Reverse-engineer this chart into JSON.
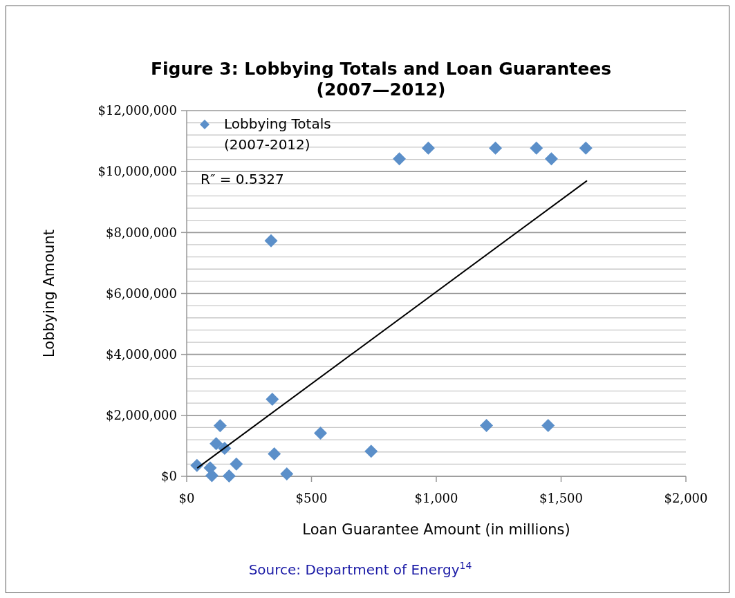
{
  "chart_data": {
    "type": "scatter",
    "title": "Figure 3: Lobbying Totals and Loan Guarantees (2007—2012)",
    "xlabel": "Loan Guarantee Amount (in millions)",
    "ylabel": "Lobbying Amount",
    "series": [
      {
        "name": "Lobbying Totals (2007-2012)",
        "color": "#5b8fc9",
        "marker": "diamond",
        "x": [
          41,
          94,
          101,
          118,
          134,
          152,
          170,
          199,
          343,
          351,
          401,
          536,
          739,
          1201,
          1448,
          338,
          852,
          968,
          1237,
          1401,
          1461,
          1599
        ],
        "values": [
          360000,
          280000,
          20000,
          1070000,
          1660000,
          920000,
          10000,
          400000,
          2530000,
          740000,
          80000,
          1420000,
          820000,
          1670000,
          1670000,
          7730000,
          10420000,
          10770000,
          10770000,
          10770000,
          10420000,
          10770000
        ]
      },
      {
        "type": "line",
        "color": "#000000",
        "x": [
          44,
          1602
        ],
        "values": [
          280000,
          9690000
        ]
      }
    ],
    "xlim": [
      0,
      2000
    ],
    "xticks": [
      {
        "value": 0,
        "label": "$0"
      },
      {
        "value": 500,
        "label": "$500"
      },
      {
        "value": 1000,
        "label": "$1,000"
      },
      {
        "value": 1500,
        "label": "$1,500"
      },
      {
        "value": 2000,
        "label": "$2,000"
      }
    ],
    "ylim": [
      0,
      12000000
    ],
    "yticks": [
      {
        "value": 0,
        "label": "$0"
      },
      {
        "value": 400000,
        "label": null
      },
      {
        "value": 800000,
        "label": null
      },
      {
        "value": 1200000,
        "label": null
      },
      {
        "value": 1600000,
        "label": null
      },
      {
        "value": 2000000,
        "label": "$2,000,000"
      },
      {
        "value": 2400000,
        "label": null
      },
      {
        "value": 2800000,
        "label": null
      },
      {
        "value": 3200000,
        "label": null
      },
      {
        "value": 3600000,
        "label": null
      },
      {
        "value": 4000000,
        "label": "$4,000,000"
      },
      {
        "value": 4400000,
        "label": null
      },
      {
        "value": 4800000,
        "label": null
      },
      {
        "value": 5200000,
        "label": null
      },
      {
        "value": 5600000,
        "label": null
      },
      {
        "value": 6000000,
        "label": "$6,000,000"
      },
      {
        "value": 6400000,
        "label": null
      },
      {
        "value": 6800000,
        "label": null
      },
      {
        "value": 7200000,
        "label": null
      },
      {
        "value": 7600000,
        "label": null
      },
      {
        "value": 8000000,
        "label": "$8,000,000"
      },
      {
        "value": 8400000,
        "label": null
      },
      {
        "value": 8800000,
        "label": null
      },
      {
        "value": 9200000,
        "label": null
      },
      {
        "value": 9600000,
        "label": null
      },
      {
        "value": 10000000,
        "label": "$10,000,000"
      },
      {
        "value": 10400000,
        "label": null
      },
      {
        "value": 10800000,
        "label": null
      },
      {
        "value": 11200000,
        "label": null
      },
      {
        "value": 11600000,
        "label": null
      },
      {
        "value": 12000000,
        "label": "$12,000,000"
      }
    ],
    "grid": "y",
    "legend": "top left",
    "annotations": [
      "R″ = 0.5327",
      "Source: Department of Energy$^{14}$"
    ]
  }
}
